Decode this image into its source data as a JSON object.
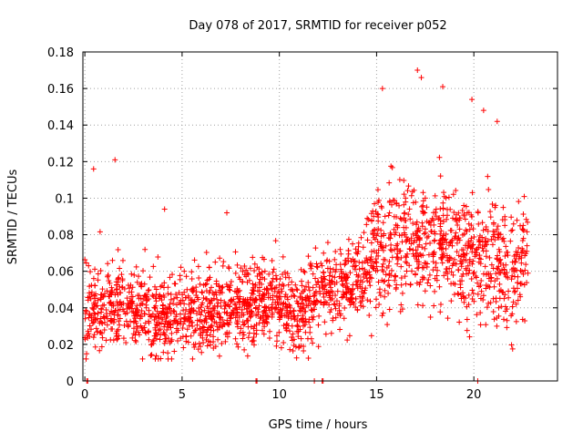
{
  "chart_data": {
    "type": "scatter",
    "title": "Day 078 of 2017, SRMTID for receiver p052",
    "xlabel": "GPS time / hours",
    "ylabel": "SRMTID / TECUs",
    "xlim": [
      -0.1,
      24.3
    ],
    "ylim": [
      0,
      0.18
    ],
    "x_ticks": [
      0,
      5,
      10,
      15,
      20
    ],
    "x_tick_labels": [
      "0",
      "5",
      "10",
      "15",
      "20"
    ],
    "y_ticks": [
      0,
      0.02,
      0.04,
      0.06,
      0.08,
      0.1,
      0.12,
      0.14,
      0.16,
      0.18
    ],
    "y_tick_labels": [
      "0",
      "0.02",
      "0.04",
      "0.06",
      "0.08",
      "0.1",
      "0.12",
      "0.14",
      "0.16",
      "0.18"
    ],
    "grid": true,
    "marker": "+",
    "series": [
      {
        "name": "p052",
        "color": "#ff0000",
        "x_range": [
          0.0,
          22.8
        ],
        "trend": {
          "x": [
            0,
            2,
            4,
            6,
            8,
            10,
            11,
            12,
            13,
            14,
            15,
            16,
            17,
            18,
            19,
            20,
            21,
            22,
            22.8
          ],
          "y": [
            0.04,
            0.042,
            0.036,
            0.036,
            0.042,
            0.042,
            0.036,
            0.048,
            0.052,
            0.054,
            0.068,
            0.072,
            0.078,
            0.076,
            0.072,
            0.068,
            0.066,
            0.058,
            0.07
          ]
        },
        "notable_points": [
          {
            "x": 0.45,
            "y": 0.116
          },
          {
            "x": 1.55,
            "y": 0.121
          },
          {
            "x": 4.1,
            "y": 0.094
          },
          {
            "x": 7.3,
            "y": 0.092
          },
          {
            "x": 15.3,
            "y": 0.16
          },
          {
            "x": 17.1,
            "y": 0.17
          },
          {
            "x": 17.3,
            "y": 0.166
          },
          {
            "x": 18.4,
            "y": 0.161
          },
          {
            "x": 19.9,
            "y": 0.154
          },
          {
            "x": 20.5,
            "y": 0.148
          },
          {
            "x": 21.2,
            "y": 0.142
          }
        ],
        "zero_points": [
          0.1,
          0.15,
          8.8,
          8.85,
          11.8,
          12.2,
          12.25,
          20.2
        ]
      }
    ]
  }
}
